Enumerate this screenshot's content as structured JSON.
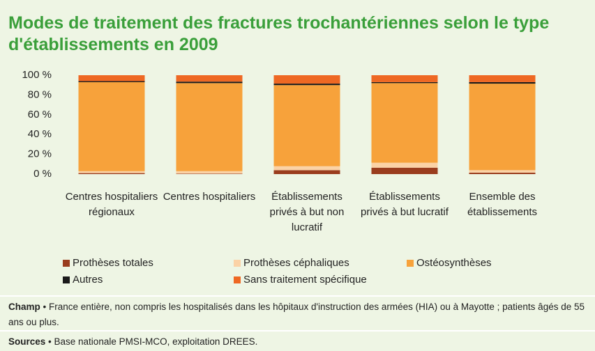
{
  "chart_data": {
    "type": "stacked_bar",
    "title": "Modes de traitement des fractures trochantériennes selon le type d'établissements en 2009",
    "categories": [
      "Centres hospitaliers régionaux",
      "Centres hospitaliers",
      "Établissements privés à but non lucratif",
      "Établissements privés à but lucratif",
      "Ensemble des établissements"
    ],
    "series": [
      {
        "name": "Prothèses totales",
        "color": "#9a3d1e",
        "values": [
          1,
          0.5,
          4,
          6.5,
          1.5
        ]
      },
      {
        "name": "Prothèses céphaliques",
        "color": "#fbd2a6",
        "values": [
          2,
          2.5,
          4,
          5,
          2.5
        ]
      },
      {
        "name": "Ostéosynthèses",
        "color": "#f7a23b",
        "values": [
          90,
          89,
          82,
          80.5,
          87.5
        ]
      },
      {
        "name": "Autres",
        "color": "#1a1a1a",
        "values": [
          1,
          1.5,
          1.5,
          1,
          1.5
        ]
      },
      {
        "name": "Sans traitement spécifique",
        "color": "#ee6823",
        "values": [
          6,
          6.5,
          8.5,
          7,
          7
        ]
      }
    ],
    "ylim": [
      0,
      100
    ],
    "yticks": [
      {
        "value": 0,
        "label": "0 %"
      },
      {
        "value": 20,
        "label": "20 %"
      },
      {
        "value": 40,
        "label": "40 %"
      },
      {
        "value": 60,
        "label": "60 %"
      },
      {
        "value": 80,
        "label": "80 %"
      },
      {
        "value": 100,
        "label": "100 %"
      }
    ],
    "footnotes": [
      {
        "label": "Champ",
        "text": "• France entière, non compris les hospitalisés dans les hôpitaux d'instruction des armées (HIA) ou à Mayotte ; patients âgés de 55 ans ou plus."
      },
      {
        "label": "Sources",
        "text": "• Base nationale PMSI-MCO, exploitation DREES."
      }
    ]
  }
}
